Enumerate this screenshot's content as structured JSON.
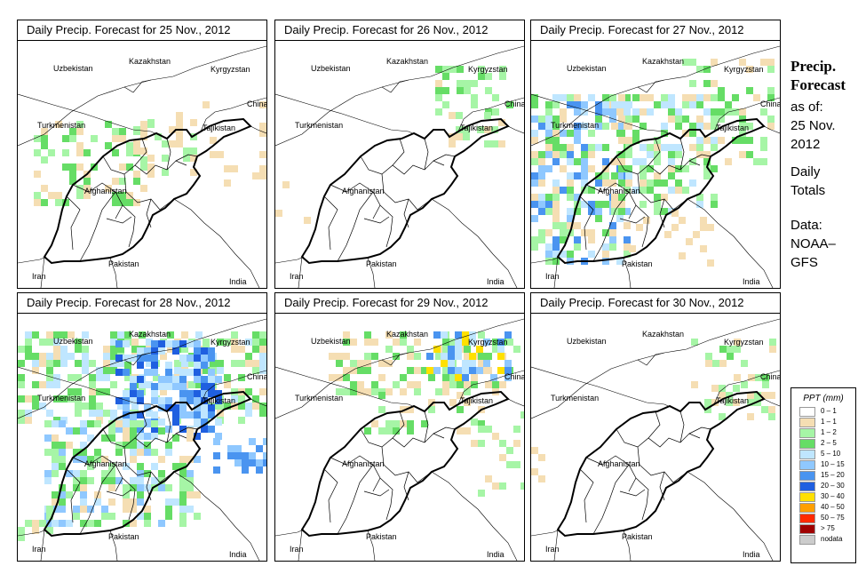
{
  "panels": [
    {
      "title": "Daily Precip. Forecast for  25 Nov., 2012",
      "pattern": "light_nw"
    },
    {
      "title": "Daily Precip. Forecast for  26 Nov., 2012",
      "pattern": "light_ne"
    },
    {
      "title": "Daily Precip. Forecast for  27 Nov., 2012",
      "pattern": "moderate_w"
    },
    {
      "title": "Daily Precip. Forecast for  28 Nov., 2012",
      "pattern": "heavy"
    },
    {
      "title": "Daily Precip. Forecast for  29 Nov., 2012",
      "pattern": "moderate_n"
    },
    {
      "title": "Daily Precip. Forecast for  30 Nov., 2012",
      "pattern": "light_ne"
    }
  ],
  "country_labels": [
    "Uzbekistan",
    "Kazakhstan",
    "Kyrgyzstan",
    "China",
    "Turkmenistan",
    "Tajikistan",
    "Afghanistan",
    "Pakistan",
    "Iran",
    "India"
  ],
  "side": {
    "title_line1": "Precip.",
    "title_line2": "Forecast",
    "asof_line1": "as of:",
    "asof_line2": "25 Nov.",
    "asof_line3": "2012",
    "totals_line1": "Daily",
    "totals_line2": "Totals",
    "data_line1": "Data:",
    "data_line2": "NOAA–",
    "data_line3": "GFS"
  },
  "legend": {
    "title": "PPT (mm)",
    "items": [
      {
        "label": "0 – 1",
        "color": "#ffffff"
      },
      {
        "label": "1 – 1",
        "color": "#f5deb3"
      },
      {
        "label": "1 – 2",
        "color": "#a6f5a6"
      },
      {
        "label": "2 – 5",
        "color": "#66dd66"
      },
      {
        "label": "5 – 10",
        "color": "#bfe6ff"
      },
      {
        "label": "10 – 15",
        "color": "#8fc8ff"
      },
      {
        "label": "15 – 20",
        "color": "#4a94f0"
      },
      {
        "label": "20 – 30",
        "color": "#1f5fe0"
      },
      {
        "label": "30 – 40",
        "color": "#ffe000"
      },
      {
        "label": "40 – 50",
        "color": "#ff9f00"
      },
      {
        "label": "50 – 75",
        "color": "#ff2a00"
      },
      {
        "label": "> 75",
        "color": "#a00000"
      },
      {
        "label": "nodata",
        "color": "#cccccc"
      }
    ]
  }
}
